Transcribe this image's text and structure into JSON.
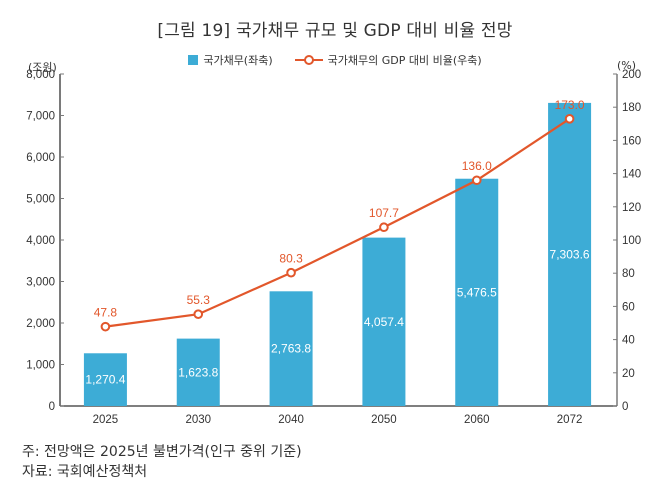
{
  "chart_data": {
    "type": "bar+line",
    "title": "[그림 19] 국가채무 규모 및 GDP 대비 비율 전망",
    "categories": [
      "2025",
      "2030",
      "2040",
      "2050",
      "2060",
      "2072"
    ],
    "series": [
      {
        "name": "국가채무(좌축)",
        "type": "bar",
        "axis": "left",
        "color": "#3dacd6",
        "values": [
          1270.4,
          1623.8,
          2763.8,
          4057.4,
          5476.5,
          7303.6
        ],
        "labels": [
          "1,270.4",
          "1,623.8",
          "2,763.8",
          "4,057.4",
          "5,476.5",
          "7,303.6"
        ]
      },
      {
        "name": "국가채무의 GDP 대비 비율(우축)",
        "type": "line",
        "axis": "right",
        "color": "#e2572b",
        "values": [
          47.8,
          55.3,
          80.3,
          107.7,
          136.0,
          173.0
        ],
        "labels": [
          "47.8",
          "55.3",
          "80.3",
          "107.7",
          "136.0",
          "173.0"
        ]
      }
    ],
    "left_axis": {
      "unit": "(조원)",
      "ylim": [
        0,
        8000
      ],
      "ticks": [
        0,
        1000,
        2000,
        3000,
        4000,
        5000,
        6000,
        7000,
        8000
      ],
      "tick_labels": [
        "0",
        "1,000",
        "2,000",
        "3,000",
        "4,000",
        "5,000",
        "6,000",
        "7,000",
        "8,000"
      ]
    },
    "right_axis": {
      "unit": "(%)",
      "ylim": [
        0,
        200
      ],
      "ticks": [
        0,
        20,
        40,
        60,
        80,
        100,
        120,
        140,
        160,
        180,
        200
      ],
      "tick_labels": [
        "0",
        "20",
        "40",
        "60",
        "80",
        "100",
        "120",
        "140",
        "160",
        "180",
        "200"
      ]
    },
    "grid": false,
    "legend_position": "top-center"
  },
  "legend": {
    "bar_label": "국가채무(좌축)",
    "line_label": "국가채무의 GDP 대비 비율(우축)"
  },
  "footnotes": {
    "note": "주: 전망액은 2025년 불변가격(인구 중위 기준)",
    "source": "자료: 국회예산정책처"
  }
}
